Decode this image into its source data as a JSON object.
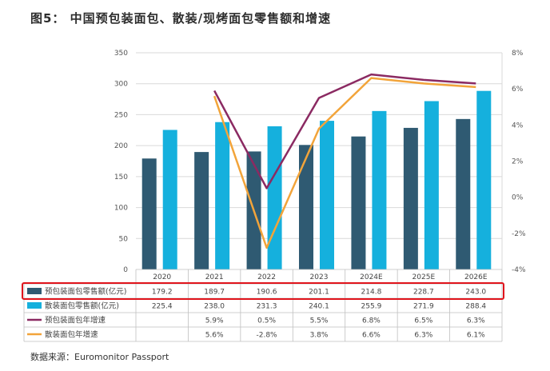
{
  "title": "图5： 中国预包装面包、散装/现烤面包零售额和增速",
  "source": "数据来源：Euromonitor Passport",
  "colors": {
    "packaged_bar": "#2f5a72",
    "bulk_bar": "#15b0dd",
    "packaged_growth": "#8b2a62",
    "bulk_growth": "#f2a43a",
    "highlight": "#e0141c"
  },
  "chart_data": {
    "type": "bar",
    "categories": [
      "2020",
      "2021",
      "2022",
      "2023",
      "2024E",
      "2025E",
      "2026E"
    ],
    "y_left": {
      "min": 0,
      "max": 350,
      "ticks": [
        "0",
        "50",
        "100",
        "150",
        "200",
        "250",
        "300",
        "350"
      ]
    },
    "y_right": {
      "min": -4,
      "max": 8,
      "ticks": [
        "-4%",
        "-2%",
        "0%",
        "2%",
        "4%",
        "6%",
        "8%"
      ]
    },
    "series": [
      {
        "name": "预包装面包零售额(亿元)",
        "type": "bar",
        "axis": "left",
        "values": [
          179.2,
          189.7,
          190.6,
          201.1,
          214.8,
          228.7,
          243.0
        ],
        "labels": [
          "179.2",
          "189.7",
          "190.6",
          "201.1",
          "214.8",
          "228.7",
          "243.0"
        ]
      },
      {
        "name": "散装面包零售额(亿元)",
        "type": "bar",
        "axis": "left",
        "values": [
          225.4,
          238.0,
          231.3,
          240.1,
          255.9,
          271.9,
          288.4
        ],
        "labels": [
          "225.4",
          "238.0",
          "231.3",
          "240.1",
          "255.9",
          "271.9",
          "288.4"
        ]
      },
      {
        "name": "预包装面包年增速",
        "type": "line",
        "axis": "right",
        "values": [
          null,
          5.9,
          0.5,
          5.5,
          6.8,
          6.5,
          6.3
        ],
        "labels": [
          "",
          "5.9%",
          "0.5%",
          "5.5%",
          "6.8%",
          "6.5%",
          "6.3%"
        ]
      },
      {
        "name": "散装面包年增速",
        "type": "line",
        "axis": "right",
        "values": [
          null,
          5.6,
          -2.8,
          3.8,
          6.6,
          6.3,
          6.1
        ],
        "labels": [
          "",
          "5.6%",
          "-2.8%",
          "3.8%",
          "6.6%",
          "6.3%",
          "6.1%"
        ]
      }
    ],
    "grid": true,
    "legend": "data-table-left"
  }
}
